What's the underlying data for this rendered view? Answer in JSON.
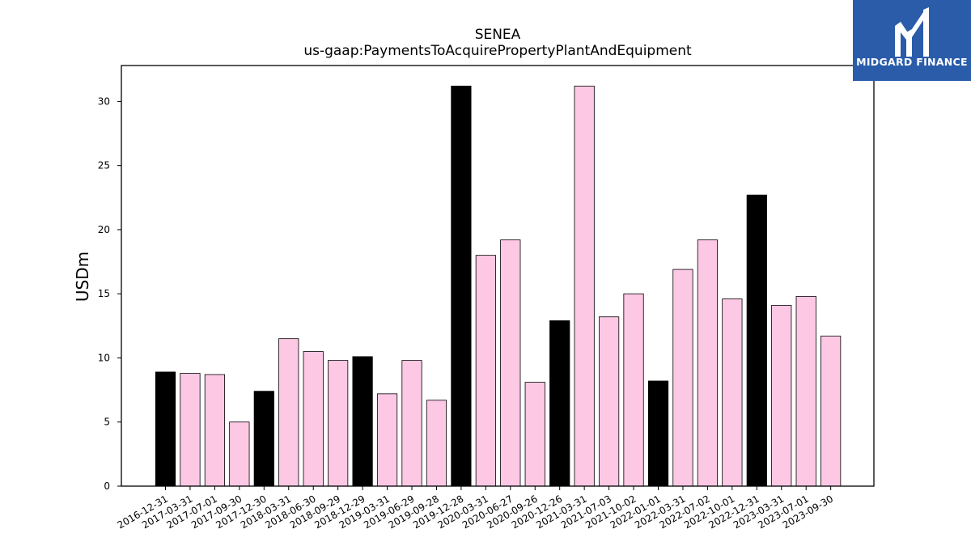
{
  "chart_data": {
    "type": "bar",
    "title": "SENEA",
    "subtitle": "us-gaap:PaymentsToAcquirePropertyPlantAndEquipment",
    "xlabel": "",
    "ylabel": "USDm",
    "ylim": [
      0,
      32.8
    ],
    "yticks": [
      0,
      5,
      10,
      15,
      20,
      25,
      30
    ],
    "grid": false,
    "categories": [
      "2016-12-31",
      "2017-03-31",
      "2017-07-01",
      "2017-09-30",
      "2017-12-30",
      "2018-03-31",
      "2018-06-30",
      "2018-09-29",
      "2018-12-29",
      "2019-03-31",
      "2019-06-29",
      "2019-09-28",
      "2019-12-28",
      "2020-03-31",
      "2020-06-27",
      "2020-09-26",
      "2020-12-26",
      "2021-03-31",
      "2021-07-03",
      "2021-10-02",
      "2022-01-01",
      "2022-03-31",
      "2022-07-02",
      "2022-10-01",
      "2022-12-31",
      "2023-03-31",
      "2023-07-01",
      "2023-09-30"
    ],
    "values": [
      8.9,
      8.8,
      8.7,
      5.0,
      7.4,
      11.5,
      10.5,
      9.8,
      10.1,
      7.2,
      9.8,
      6.7,
      31.2,
      18.0,
      19.2,
      8.1,
      12.9,
      31.2,
      13.2,
      15.0,
      8.2,
      16.9,
      19.2,
      14.6,
      22.7,
      14.1,
      14.8,
      11.7
    ],
    "bar_colors": [
      "#000000",
      "#fcc8e4",
      "#fcc8e4",
      "#fcc8e4",
      "#000000",
      "#fcc8e4",
      "#fcc8e4",
      "#fcc8e4",
      "#000000",
      "#fcc8e4",
      "#fcc8e4",
      "#fcc8e4",
      "#000000",
      "#fcc8e4",
      "#fcc8e4",
      "#fcc8e4",
      "#000000",
      "#fcc8e4",
      "#fcc8e4",
      "#fcc8e4",
      "#000000",
      "#fcc8e4",
      "#fcc8e4",
      "#fcc8e4",
      "#000000",
      "#fcc8e4",
      "#fcc8e4",
      "#fcc8e4"
    ]
  },
  "logo": {
    "text": "MIDGARD FINANCE",
    "background": "#2a5caa"
  }
}
